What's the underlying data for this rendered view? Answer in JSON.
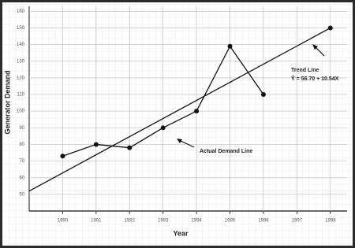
{
  "chart_data": {
    "type": "line",
    "x_label": "Year",
    "y_label": "Generator Demand",
    "xlim": [
      1989,
      1998.5
    ],
    "xticks": [
      1990,
      1991,
      1992,
      1993,
      1994,
      1995,
      1996,
      1997,
      1998
    ],
    "ylim": [
      40,
      163
    ],
    "yticks": [
      50,
      60,
      70,
      80,
      90,
      100,
      110,
      120,
      130,
      140,
      150,
      160
    ],
    "grid": true,
    "series": [
      {
        "name": "Actual Demand Line",
        "color": "#111111",
        "x": [
          1990,
          1991,
          1992,
          1993,
          1994,
          1995,
          1996
        ],
        "values": [
          73,
          80,
          78,
          90,
          100,
          139,
          110
        ]
      },
      {
        "name": "Trend Line",
        "color": "#111111",
        "x": [
          1989,
          1998
        ],
        "values": [
          52,
          150
        ]
      }
    ],
    "annotations": [
      "Ŷ = 56.70 + 10.54X"
    ]
  }
}
